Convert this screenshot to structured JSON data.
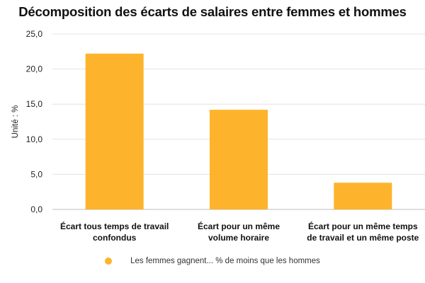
{
  "chart_data": {
    "type": "bar",
    "title": "Décomposition des écarts de salaires entre femmes et hommes",
    "ylabel": "Unité : %",
    "ylim": [
      0,
      25
    ],
    "yticks": [
      0,
      5,
      10,
      15,
      20,
      25
    ],
    "ytick_labels": [
      "0,0",
      "5,0",
      "10,0",
      "15,0",
      "20,0",
      "25,0"
    ],
    "categories": [
      [
        "Écart tous temps de travail",
        "confondus"
      ],
      [
        "Écart pour un même",
        "volume horaire"
      ],
      [
        "Écart pour un même temps",
        "de travail et un même poste"
      ]
    ],
    "series": [
      {
        "name": "Les femmes gagnent... % de moins que les hommes",
        "values": [
          22.2,
          14.2,
          3.8
        ],
        "color": "#FDB32B"
      }
    ],
    "grid": true,
    "legend_position": "bottom"
  }
}
